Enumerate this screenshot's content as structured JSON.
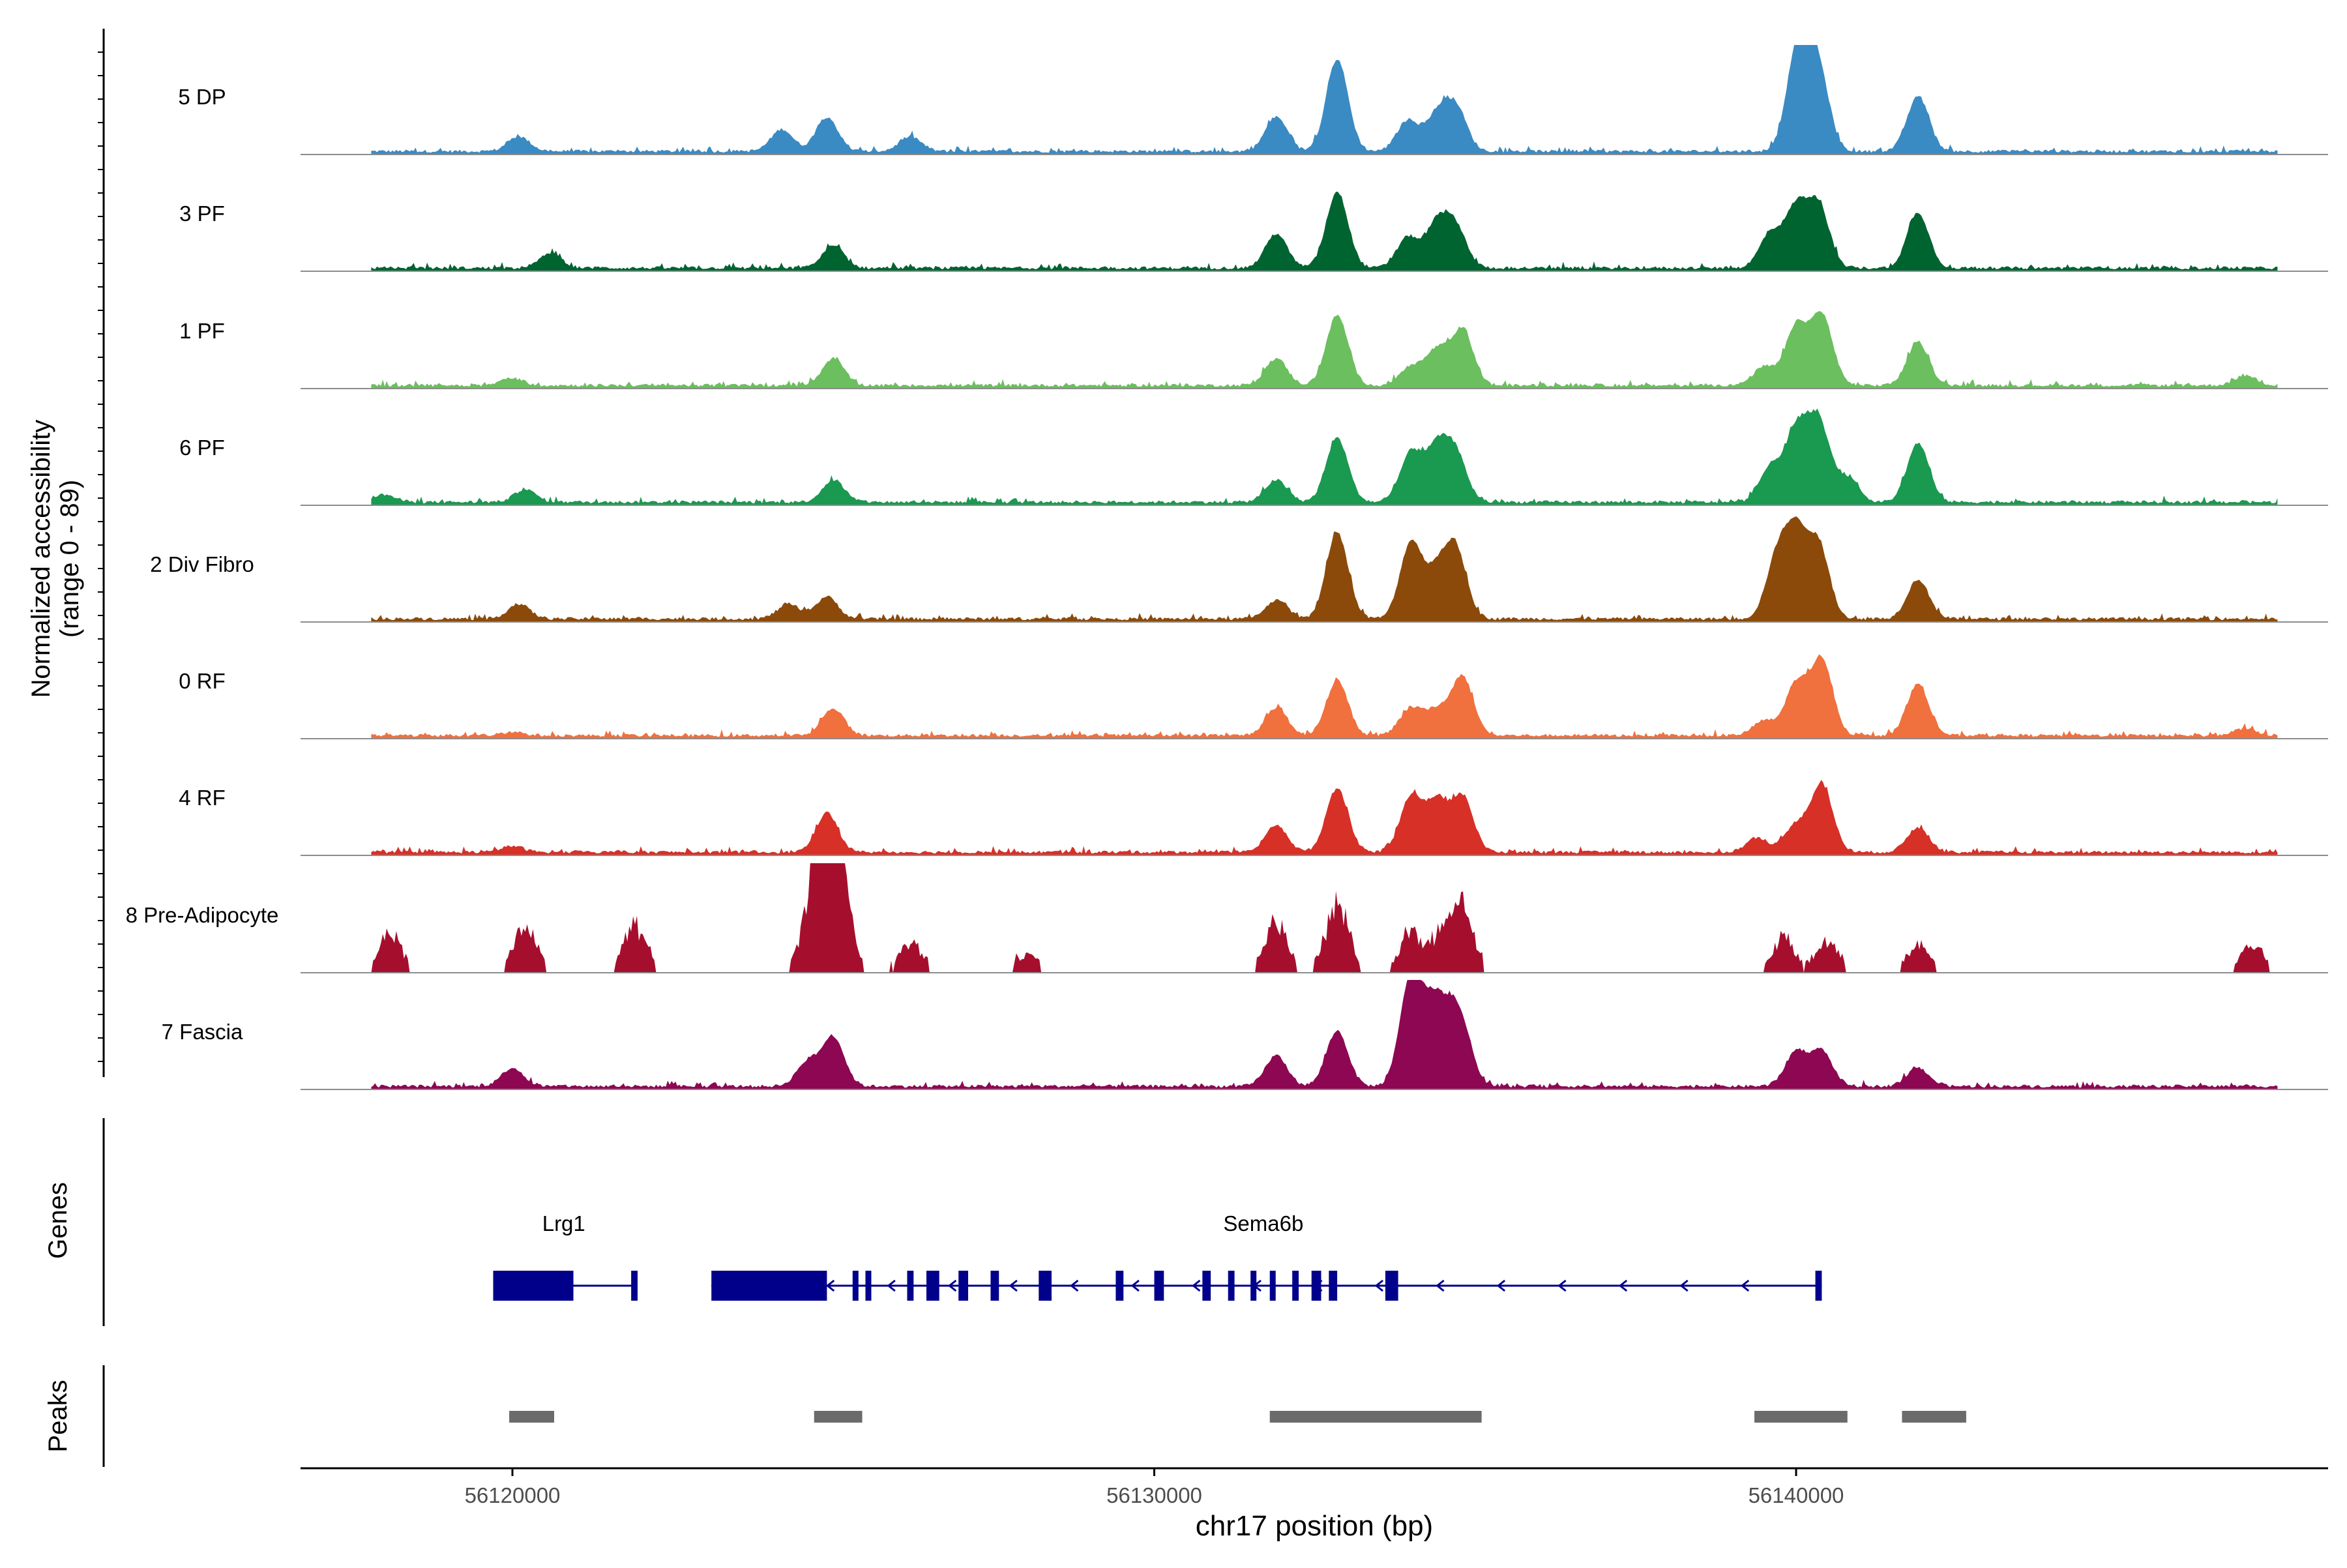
{
  "chart_data": {
    "type": "area",
    "title": "",
    "ylabel_line1": "Normalized accessibility",
    "ylabel_line2": "(range 0 - 89)",
    "ylim": [
      0,
      89
    ],
    "xlabel": "chr17 position (bp)",
    "xlim": [
      56116700,
      56148800
    ],
    "xticks": [
      56120000,
      56130000,
      56140000
    ],
    "xtick_labels": [
      "56120000",
      "56130000",
      "56140000"
    ],
    "genes_label": "Genes",
    "peaks_label": "Peaks",
    "gene_color": "#00008B",
    "peak_color": "#6B6B6B",
    "series": [
      {
        "name": "5 DP",
        "color": "#3A8BC3",
        "peaks": [
          [
            56132850,
            75
          ],
          [
            56131900,
            28
          ],
          [
            56133950,
            25
          ],
          [
            56134400,
            28
          ],
          [
            56134700,
            35
          ],
          [
            56140000,
            55
          ],
          [
            56140350,
            62
          ],
          [
            56141900,
            45
          ],
          [
            56140100,
            38
          ],
          [
            56124900,
            28
          ],
          [
            56124200,
            18
          ],
          [
            56120100,
            12
          ],
          [
            56126200,
            12
          ]
        ]
      },
      {
        "name": "3 PF",
        "color": "#006430",
        "peaks": [
          [
            56132850,
            62
          ],
          [
            56131900,
            28
          ],
          [
            56133950,
            25
          ],
          [
            56134400,
            35
          ],
          [
            56134700,
            32
          ],
          [
            56140000,
            48
          ],
          [
            56140350,
            50
          ],
          [
            56141900,
            45
          ],
          [
            56139600,
            28
          ],
          [
            56125000,
            18
          ],
          [
            56120600,
            12
          ]
        ]
      },
      {
        "name": "1 PF",
        "color": "#6BBF5E",
        "peaks": [
          [
            56132850,
            57
          ],
          [
            56131900,
            22
          ],
          [
            56134400,
            28
          ],
          [
            56134800,
            45
          ],
          [
            56134000,
            15
          ],
          [
            56140000,
            48
          ],
          [
            56140400,
            57
          ],
          [
            56141900,
            35
          ],
          [
            56139500,
            15
          ],
          [
            56125000,
            22
          ],
          [
            56120000,
            6
          ],
          [
            56147000,
            8
          ]
        ]
      },
      {
        "name": "6 PF",
        "color": "#1A9950",
        "peaks": [
          [
            56132850,
            52
          ],
          [
            56131900,
            18
          ],
          [
            56134000,
            40
          ],
          [
            56134400,
            42
          ],
          [
            56134700,
            38
          ],
          [
            56140000,
            57
          ],
          [
            56140350,
            65
          ],
          [
            56141900,
            48
          ],
          [
            56139600,
            28
          ],
          [
            56140800,
            20
          ],
          [
            56125000,
            18
          ],
          [
            56120200,
            10
          ],
          [
            56118000,
            6
          ]
        ]
      },
      {
        "name": "2 Div Fibro",
        "color": "#8B4A0A",
        "peaks": [
          [
            56132850,
            70
          ],
          [
            56131900,
            15
          ],
          [
            56134000,
            62
          ],
          [
            56134700,
            55
          ],
          [
            56134400,
            35
          ],
          [
            56139700,
            48
          ],
          [
            56140000,
            65
          ],
          [
            56140350,
            58
          ],
          [
            56141900,
            32
          ],
          [
            56124900,
            18
          ],
          [
            56124300,
            12
          ],
          [
            56120100,
            12
          ]
        ]
      },
      {
        "name": "0 RF",
        "color": "#F0703E",
        "peaks": [
          [
            56132850,
            45
          ],
          [
            56131900,
            22
          ],
          [
            56134000,
            22
          ],
          [
            56134400,
            20
          ],
          [
            56134800,
            48
          ],
          [
            56140000,
            42
          ],
          [
            56140400,
            62
          ],
          [
            56141900,
            42
          ],
          [
            56139500,
            12
          ],
          [
            56125000,
            22
          ],
          [
            56120000,
            3
          ],
          [
            56147000,
            6
          ]
        ]
      },
      {
        "name": "4 RF",
        "color": "#D73027",
        "peaks": [
          [
            56132850,
            52
          ],
          [
            56131900,
            22
          ],
          [
            56134000,
            45
          ],
          [
            56134400,
            40
          ],
          [
            56134800,
            45
          ],
          [
            56140000,
            22
          ],
          [
            56140400,
            55
          ],
          [
            56141900,
            20
          ],
          [
            56139400,
            12
          ],
          [
            56124900,
            32
          ],
          [
            56120000,
            5
          ]
        ]
      },
      {
        "name": "8 Pre-Adipocyte",
        "color": "#A50F2D",
        "peaks": [
          [
            56124900,
            89
          ],
          [
            56124700,
            55
          ],
          [
            56125100,
            60
          ],
          [
            56132850,
            52
          ],
          [
            56131900,
            38
          ],
          [
            56134000,
            28
          ],
          [
            56134500,
            30
          ],
          [
            56134800,
            50
          ],
          [
            56139800,
            25
          ],
          [
            56140500,
            25
          ],
          [
            56141900,
            20
          ],
          [
            56120200,
            35
          ],
          [
            56121900,
            35
          ],
          [
            56118100,
            28
          ],
          [
            56147100,
            22
          ],
          [
            56128000,
            12
          ],
          [
            56126200,
            22
          ]
        ]
      },
      {
        "name": "7 Fascia",
        "color": "#8E0752",
        "peaks": [
          [
            56132850,
            45
          ],
          [
            56131900,
            25
          ],
          [
            56134000,
            89
          ],
          [
            56134350,
            55
          ],
          [
            56134800,
            40
          ],
          [
            56134600,
            35
          ],
          [
            56140000,
            28
          ],
          [
            56140400,
            28
          ],
          [
            56141900,
            15
          ],
          [
            56125000,
            40
          ],
          [
            56124600,
            20
          ],
          [
            56120000,
            15
          ]
        ]
      }
    ],
    "genes": [
      {
        "name": "Lrg1",
        "label_x": 56120800,
        "strand": "-",
        "start": 56119700,
        "end": 56121950,
        "exons": [
          [
            56119700,
            56120950
          ],
          [
            56121850,
            56121950
          ]
        ]
      },
      {
        "name": "Sema6b",
        "label_x": 56131700,
        "strand": "-",
        "start": 56123100,
        "end": 56140400,
        "exons": [
          [
            56123100,
            56124900
          ],
          [
            56125300,
            56125380
          ],
          [
            56125500,
            56125570
          ],
          [
            56126150,
            56126250
          ],
          [
            56126450,
            56126650
          ],
          [
            56126950,
            56127100
          ],
          [
            56127450,
            56127580
          ],
          [
            56128200,
            56128400
          ],
          [
            56129400,
            56129520
          ],
          [
            56130000,
            56130150
          ],
          [
            56130750,
            56130880
          ],
          [
            56131150,
            56131250
          ],
          [
            56131500,
            56131570
          ],
          [
            56131800,
            56131860
          ],
          [
            56132150,
            56132250
          ],
          [
            56132450,
            56132600
          ],
          [
            56132720,
            56132850
          ],
          [
            56133600,
            56133800
          ],
          [
            56140300,
            56140400
          ]
        ]
      }
    ],
    "peaks": [
      [
        56119950,
        56120650
      ],
      [
        56124700,
        56125450
      ],
      [
        56131800,
        56135100
      ],
      [
        56139350,
        56140800
      ],
      [
        56141650,
        56142650
      ]
    ]
  }
}
